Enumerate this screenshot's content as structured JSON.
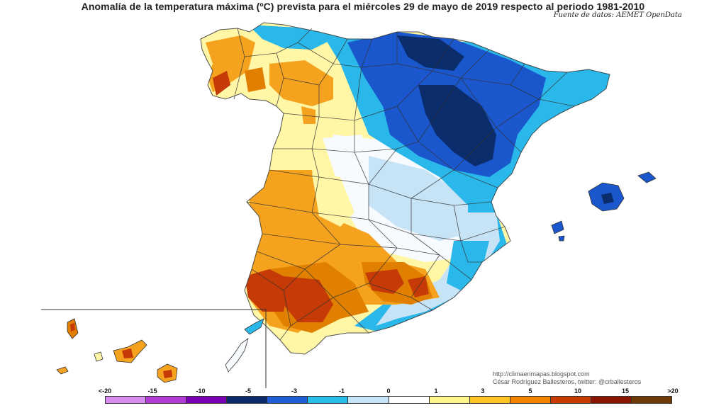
{
  "header": {
    "title": "Anomalía de la temperatura máxima (ºC) prevista para el miércoles 29 de mayo de 2019 respecto al periodo 1981-2010",
    "source": "Fuente de datos: AEMET OpenData"
  },
  "credits": {
    "url": "http://climaenmapas.blogspot.com",
    "author": "César Rodríguez Ballesteros, twitter: @crballesteros"
  },
  "legend": {
    "labels": [
      "<-20",
      "-15",
      "-10",
      "-5",
      "-3",
      "-1",
      "0",
      "1",
      "3",
      "5",
      "10",
      "15",
      ">20"
    ],
    "colors": [
      "#d98cf0",
      "#b23ad6",
      "#7a00b8",
      "#0a2a6e",
      "#1e5fd6",
      "#27bde9",
      "#c6e3f7",
      "#ffffff",
      "#fff68a",
      "#ffc324",
      "#f08400",
      "#c83c00",
      "#8a1500",
      "#6e3a05"
    ]
  },
  "map_colors": {
    "deep_blue": "#0b2d6b",
    "blue": "#1a56cc",
    "cyan": "#2ab8ea",
    "light_blue": "#c7e3f6",
    "white": "#f7fbff",
    "light_yellow": "#fff6a6",
    "yellow": "#ffe85c",
    "orange": "#f5a21e",
    "dark_orange": "#e07f00",
    "red": "#c53a06"
  }
}
